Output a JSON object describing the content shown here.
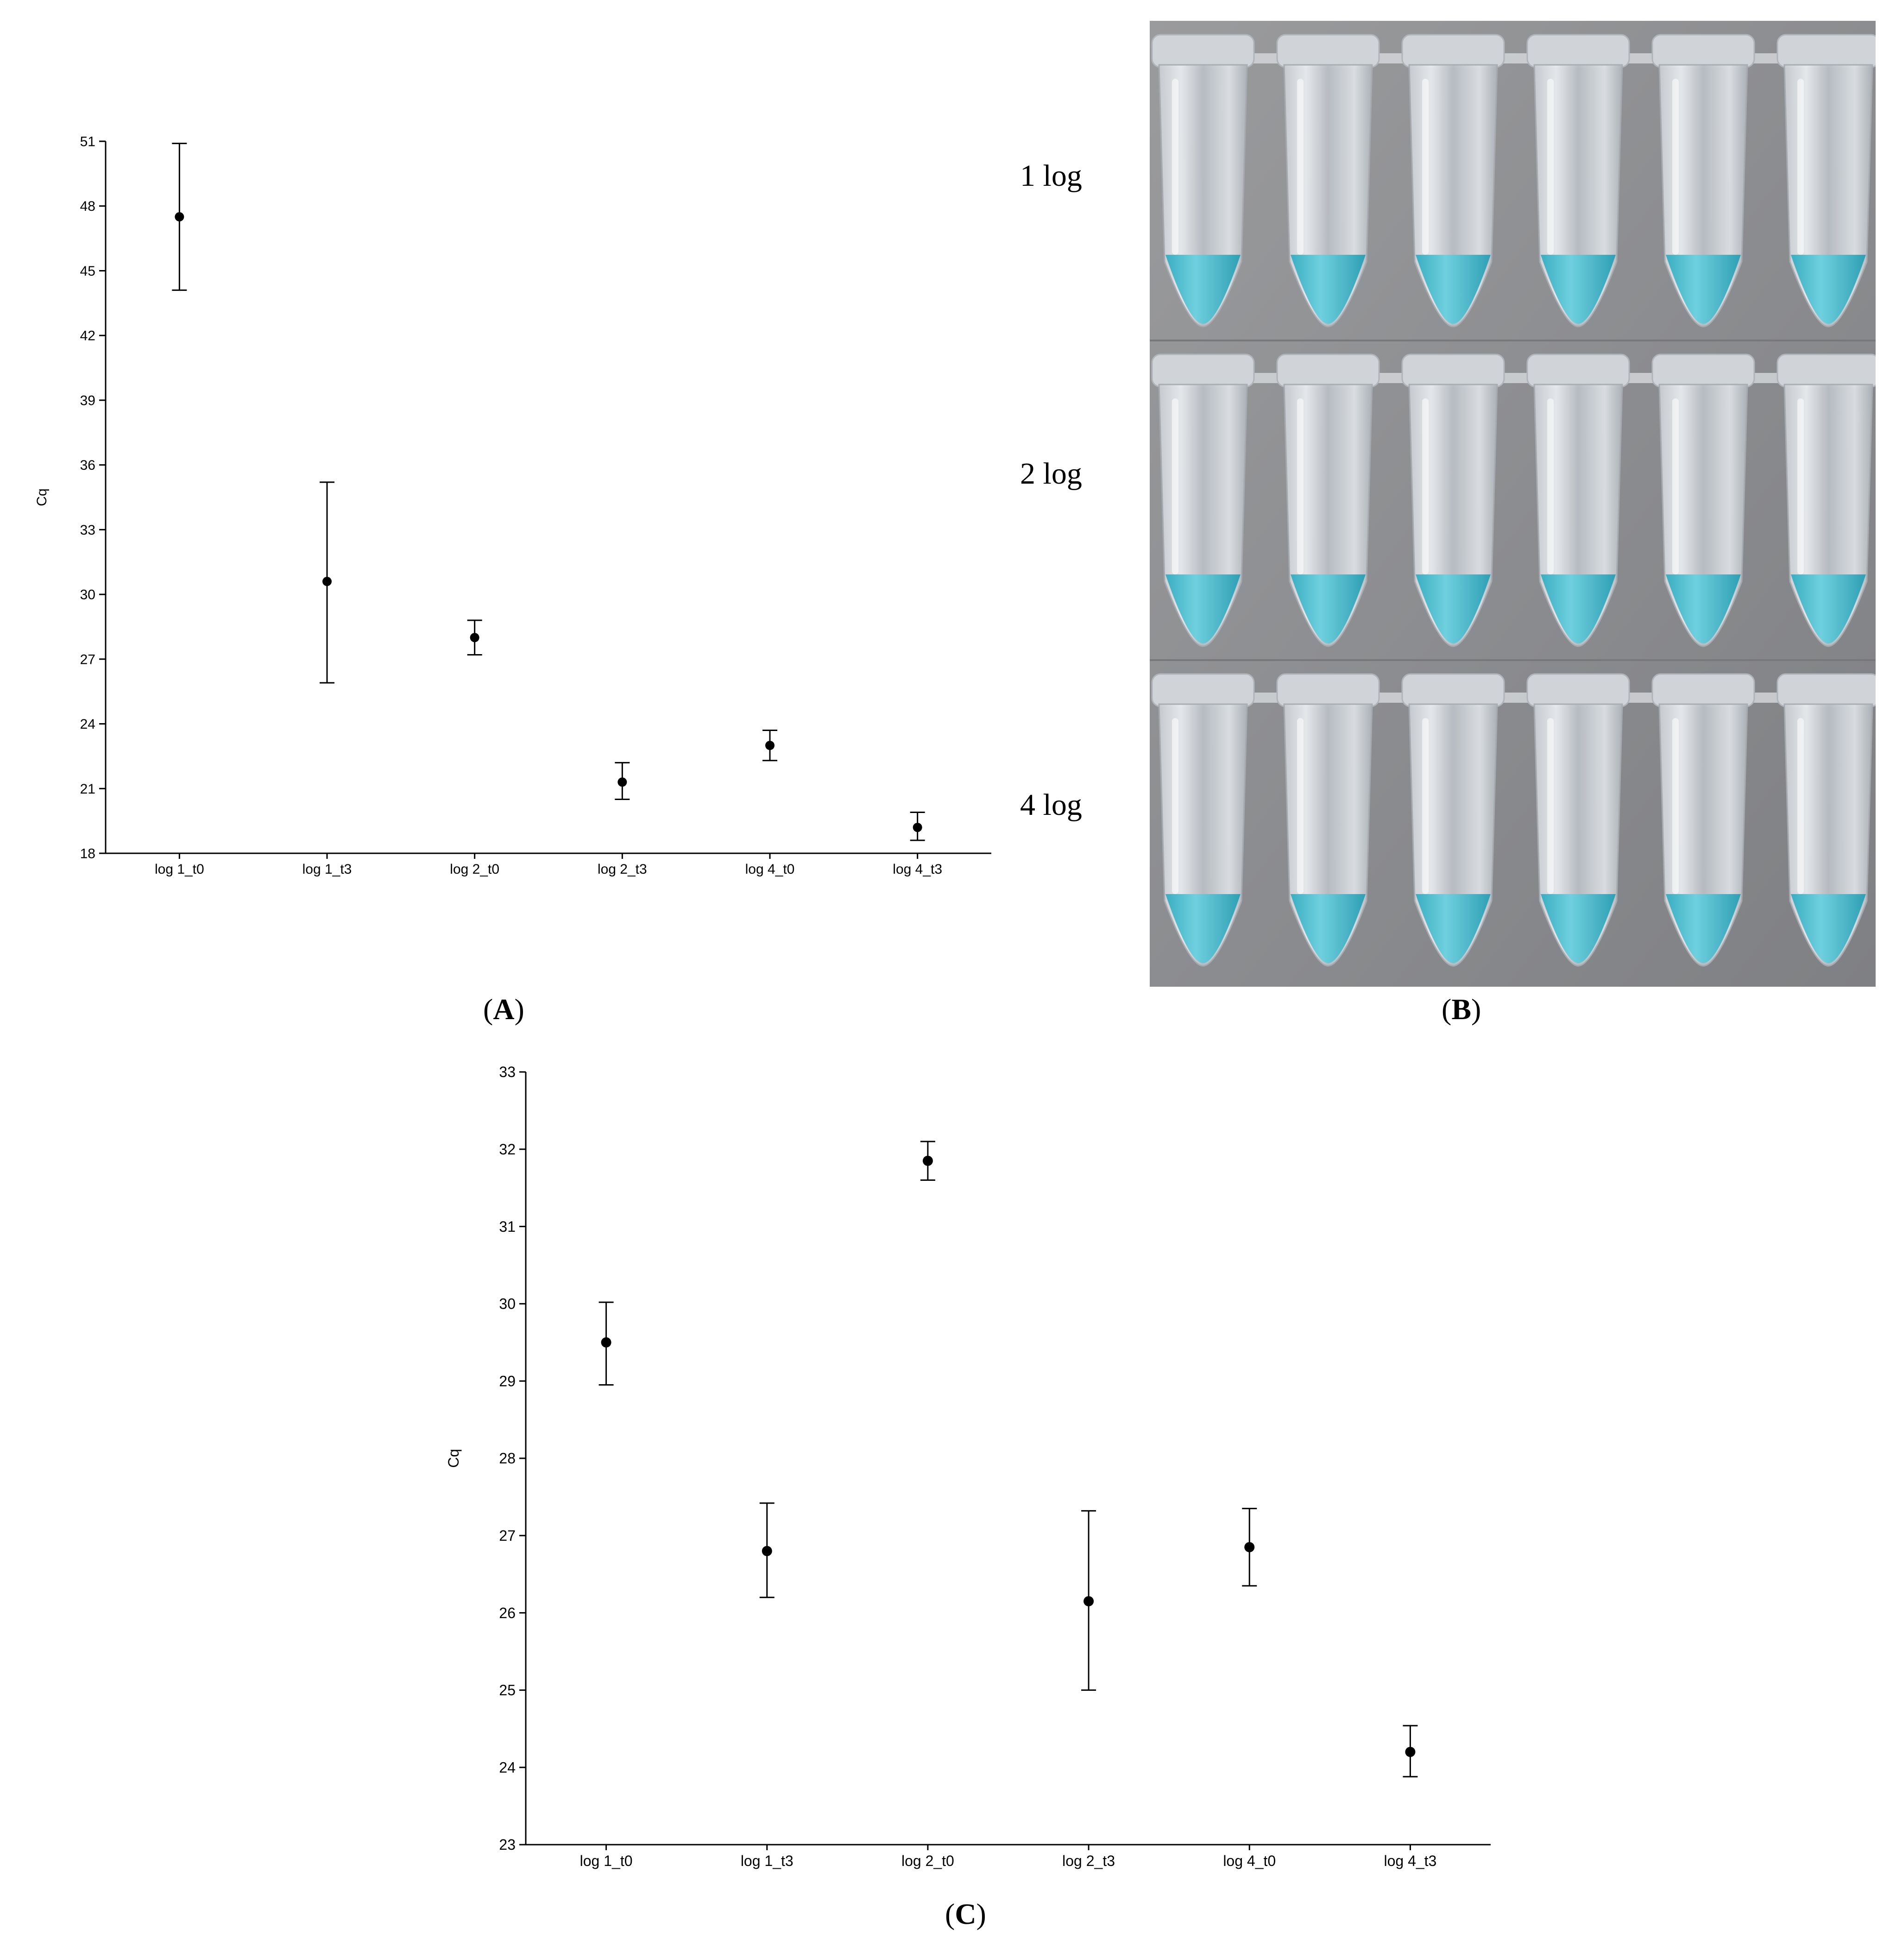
{
  "panels": {
    "A": "A",
    "B": "B",
    "C": "C"
  },
  "photo": {
    "row_labels": [
      "1 log",
      "2 log",
      "4 log"
    ],
    "tubes_per_row": 6,
    "tube_color": "#3fb8cc",
    "background_color": "#8e8f91"
  },
  "chart_data": [
    {
      "type": "scatter",
      "panel": "A",
      "ylabel": "Cq",
      "ylim": [
        18,
        51
      ],
      "yticks": [
        18,
        21,
        24,
        27,
        30,
        33,
        36,
        39,
        42,
        45,
        48,
        51
      ],
      "categories": [
        "log 1_t0",
        "log 1_t3",
        "log 2_t0",
        "log 2_t3",
        "log 4_t0",
        "log 4_t3"
      ],
      "values": [
        47.5,
        30.6,
        28.0,
        21.3,
        23.0,
        19.2
      ],
      "error_low": [
        44.1,
        25.9,
        27.2,
        20.5,
        22.3,
        18.6
      ],
      "error_high": [
        50.9,
        35.2,
        28.8,
        22.2,
        23.7,
        19.9
      ]
    },
    {
      "type": "scatter",
      "panel": "C",
      "ylabel": "Cq",
      "ylim": [
        23,
        33
      ],
      "yticks": [
        23,
        24,
        25,
        26,
        27,
        28,
        29,
        30,
        31,
        32,
        33
      ],
      "categories": [
        "log 1_t0",
        "log 1_t3",
        "log 2_t0",
        "log 2_t3",
        "log 4_t0",
        "log 4_t3"
      ],
      "values": [
        29.5,
        26.8,
        31.85,
        26.15,
        26.85,
        24.2
      ],
      "error_low": [
        28.95,
        26.2,
        31.6,
        25.0,
        26.35,
        23.88
      ],
      "error_high": [
        30.02,
        27.42,
        32.1,
        27.32,
        27.35,
        24.54
      ]
    }
  ]
}
